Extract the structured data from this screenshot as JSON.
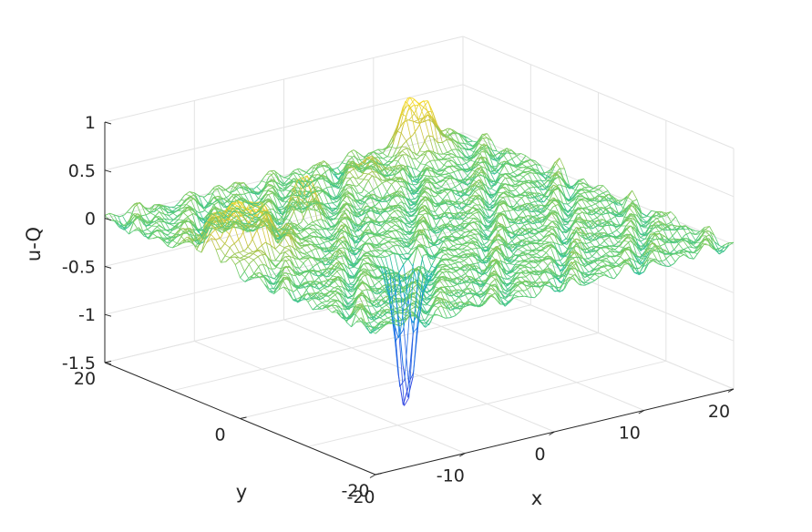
{
  "chart_data": {
    "type": "surface",
    "title": "",
    "xlabel": "x",
    "ylabel": "y",
    "zlabel": "u-Q",
    "xlim": [
      -20,
      20
    ],
    "ylim": [
      -20,
      20
    ],
    "zlim": [
      -1.5,
      1
    ],
    "x_ticks": [
      "-20",
      "-10",
      "0",
      "10",
      "20"
    ],
    "y_ticks": [
      "-20",
      "0",
      "20"
    ],
    "z_ticks": [
      "-1.5",
      "-1",
      "-0.5",
      "0",
      "0.5",
      "1"
    ],
    "grid": true,
    "colormap": "parula",
    "features": [
      {
        "name": "broad hump",
        "x": -16,
        "y": 5,
        "z": 0.52
      },
      {
        "name": "narrow spike",
        "x": -6,
        "y": 9,
        "z": 0.45
      },
      {
        "name": "deep dip",
        "x": -6,
        "y": -6,
        "z": -1.5
      },
      {
        "name": "back peak",
        "x": 13,
        "y": 18,
        "z": 0.45
      },
      {
        "name": "back peak",
        "x": 15,
        "y": 19,
        "z": 0.3
      },
      {
        "name": "back ridge",
        "x": 5,
        "y": 14,
        "z": 0.25
      }
    ]
  }
}
